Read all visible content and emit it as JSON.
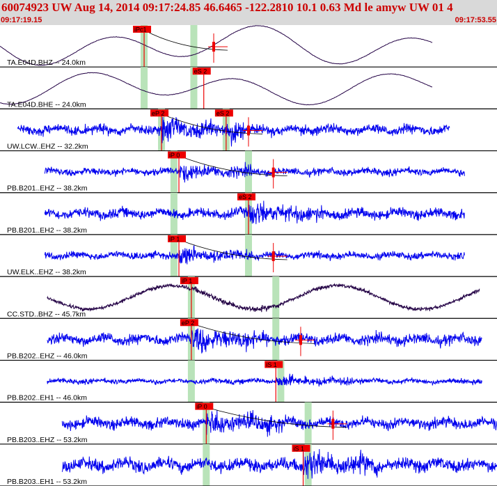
{
  "header": {
    "title": "60074923 UW Aug 14, 2014 09:17:24.85   46.6465 -122.2810 10.1 0.63 Md le amyw UW 01   4",
    "start_time": "09:17:19.15",
    "end_time": "09:17:53.55"
  },
  "colors": {
    "header_bg": "#d9d9d9",
    "header_text": "#cc0000",
    "trace_blue": "#0000ee",
    "trace_dark": "#220044",
    "pick_red": "#ee0000",
    "window_green": "#b9e3b9"
  },
  "chart_data": {
    "type": "line",
    "x_unit": "time",
    "x_range": [
      "09:17:19.15",
      "09:17:53.55"
    ],
    "traces": [
      {
        "label": "TA.E04D.BHZ -- 24.0km",
        "style": "smooth",
        "color": "dark",
        "x_start": 0.0,
        "x_end": 0.87,
        "amp": 0.55,
        "picks": [
          {
            "label": "iPc1",
            "x": 0.29
          }
        ],
        "windows": [
          0.29,
          0.39
        ],
        "coda": {
          "x": 0.43,
          "tick": 0.43
        }
      },
      {
        "label": "TA.E04D.BHE -- 24.0km",
        "style": "smooth",
        "color": "dark",
        "x_start": 0.0,
        "x_end": 0.87,
        "amp": 0.45,
        "picks": [
          {
            "label": "eS 2",
            "x": 0.41
          }
        ],
        "windows": [
          0.29,
          0.39
        ],
        "coda": null
      },
      {
        "label": "UW.LCW..EHZ -- 32.2km",
        "style": "noise",
        "color": "blue",
        "x_start": 0.035,
        "x_end": 0.905,
        "amp": 0.35,
        "picks": [
          {
            "label": "eP 2",
            "x": 0.325
          },
          {
            "label": "eS 2",
            "x": 0.455
          }
        ],
        "windows": [
          0.325,
          0.455
        ],
        "coda": {
          "x": 0.5,
          "tick": 0.5
        }
      },
      {
        "label": "PB.B201..EHZ -- 38.2km",
        "style": "noise",
        "color": "blue",
        "x_start": 0.09,
        "x_end": 0.935,
        "amp": 0.25,
        "picks": [
          {
            "label": "iP 0",
            "x": 0.36
          }
        ],
        "windows": [
          0.35,
          0.5
        ],
        "coda": {
          "x": 0.55,
          "tick": 0.55
        }
      },
      {
        "label": "PB.B201..EH2 -- 38.2km",
        "style": "noise",
        "color": "blue",
        "x_start": 0.09,
        "x_end": 0.935,
        "amp": 0.35,
        "picks": [
          {
            "label": "eS 2",
            "x": 0.5
          }
        ],
        "windows": [
          0.35,
          0.5
        ],
        "coda": null
      },
      {
        "label": "UW.ELK..EHZ -- 38.2km",
        "style": "noise",
        "color": "blue",
        "x_start": 0.09,
        "x_end": 0.935,
        "amp": 0.25,
        "picks": [
          {
            "label": "iP 1",
            "x": 0.36
          }
        ],
        "windows": [
          0.35,
          0.5
        ],
        "coda": {
          "x": 0.55,
          "tick": 0.55
        }
      },
      {
        "label": "CC.STD..BHZ -- 45.7km",
        "style": "mixed",
        "color": "dark",
        "x_start": 0.095,
        "x_end": 0.965,
        "amp": 0.4,
        "picks": [
          {
            "label": "iP 1",
            "x": 0.385
          }
        ],
        "windows": [
          0.385,
          0.555
        ],
        "coda": null
      },
      {
        "label": "PB.B202..EHZ -- 46.0km",
        "style": "noise",
        "color": "blue",
        "x_start": 0.095,
        "x_end": 0.97,
        "amp": 0.38,
        "picks": [
          {
            "label": "eP 2",
            "x": 0.385
          }
        ],
        "windows": [
          0.385,
          0.555
        ],
        "coda": {
          "x": 0.605,
          "tick": 0.605
        }
      },
      {
        "label": "PB.B202..EH1 -- 46.0km",
        "style": "noise",
        "color": "blue",
        "x_start": 0.095,
        "x_end": 0.97,
        "amp": 0.18,
        "picks": [
          {
            "label": "iS 1",
            "x": 0.555
          }
        ],
        "windows": [
          0.385,
          0.565
        ],
        "coda": null
      },
      {
        "label": "PB.B203..EHZ -- 53.2km",
        "style": "noise",
        "color": "blue",
        "x_start": 0.125,
        "x_end": 1.0,
        "amp": 0.38,
        "picks": [
          {
            "label": "iP 0",
            "x": 0.415
          }
        ],
        "windows": [
          0.415,
          0.62
        ],
        "coda": {
          "x": 0.67,
          "tick": 0.67
        }
      },
      {
        "label": "PB.B203..EH1 -- 53.2km",
        "style": "noise",
        "color": "blue",
        "x_start": 0.125,
        "x_end": 1.0,
        "amp": 0.45,
        "picks": [
          {
            "label": "iS 1",
            "x": 0.61
          }
        ],
        "windows": [
          0.415,
          0.62
        ],
        "coda": null
      }
    ]
  }
}
